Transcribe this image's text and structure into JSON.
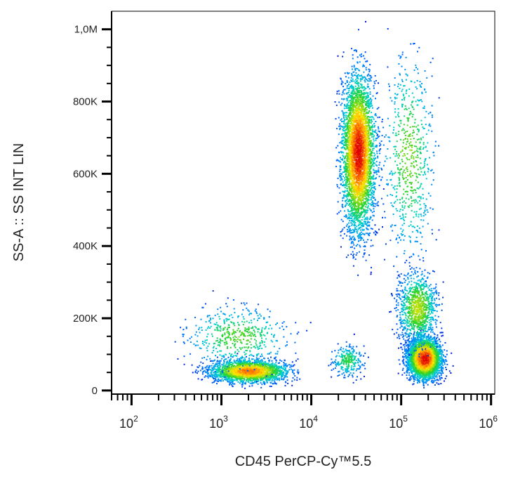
{
  "chart_data": {
    "type": "scatter",
    "title": "",
    "xlabel": "CD45 PerCP-Cy™5.5",
    "ylabel": "SS-A :: SS INT LIN",
    "x_scale": "log",
    "xlim": [
      60,
      1100000
    ],
    "ylim": [
      -10000,
      1050000
    ],
    "x_ticks": [
      {
        "value": 100,
        "base": "10",
        "exp": "2"
      },
      {
        "value": 1000,
        "base": "10",
        "exp": "3"
      },
      {
        "value": 10000,
        "base": "10",
        "exp": "4"
      },
      {
        "value": 100000,
        "base": "10",
        "exp": "5"
      },
      {
        "value": 1000000,
        "base": "10",
        "exp": "6"
      }
    ],
    "y_ticks": [
      {
        "value": 0,
        "label": "0"
      },
      {
        "value": 200000,
        "label": "200K"
      },
      {
        "value": 400000,
        "label": "400K"
      },
      {
        "value": 600000,
        "label": "600K"
      },
      {
        "value": 800000,
        "label": "800K"
      },
      {
        "value": 1000000,
        "label": "1,0M"
      }
    ],
    "grid": false,
    "color_scale": "density: blue (low) → cyan → green → yellow → red (high)",
    "populations": [
      {
        "x_center": 2000,
        "y_center": 55000,
        "x_log_spread": 0.3,
        "y_spread": 22000,
        "relative_count": 0.8
      },
      {
        "x_center": 1500,
        "y_center": 150000,
        "x_log_spread": 0.4,
        "y_spread": 60000,
        "relative_count": 0.2
      },
      {
        "x_center": 33000,
        "y_center": 660000,
        "x_log_spread": 0.13,
        "y_spread": 150000,
        "relative_count": 1.6
      },
      {
        "x_center": 180000,
        "y_center": 90000,
        "x_log_spread": 0.13,
        "y_spread": 40000,
        "relative_count": 1.4
      },
      {
        "x_center": 150000,
        "y_center": 230000,
        "x_log_spread": 0.15,
        "y_spread": 70000,
        "relative_count": 0.4
      },
      {
        "x_center": 120000,
        "y_center": 650000,
        "x_log_spread": 0.2,
        "y_spread": 200000,
        "relative_count": 0.25
      },
      {
        "x_center": 25000,
        "y_center": 85000,
        "x_log_spread": 0.12,
        "y_spread": 30000,
        "relative_count": 0.1
      }
    ]
  }
}
